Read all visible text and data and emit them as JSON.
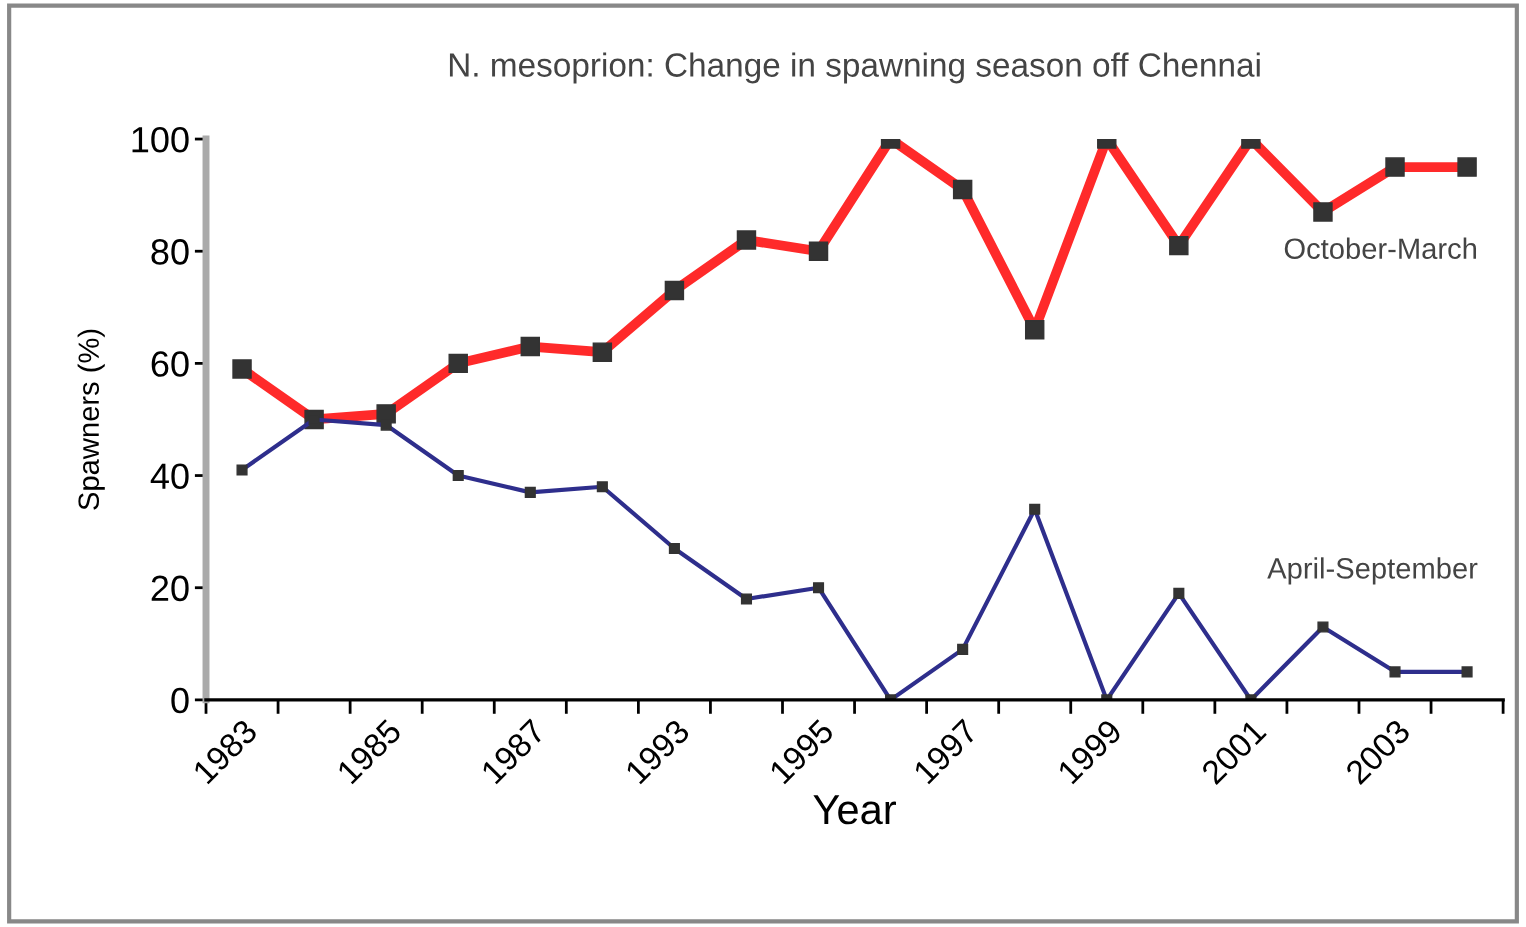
{
  "chart_data": {
    "type": "line",
    "title": "N. mesoprion: Change in spawning season off Chennai",
    "xlabel": "Year",
    "ylabel": "Spawners (%)",
    "categories": [
      "1983",
      null,
      "1985",
      null,
      "1987",
      null,
      "1993",
      null,
      "1995",
      null,
      "1997",
      null,
      "1999",
      null,
      "2001",
      null,
      "2003",
      null
    ],
    "series": [
      {
        "name": "October-March",
        "color": "#ff2a2a",
        "values": [
          59,
          50,
          51,
          60,
          63,
          62,
          73,
          82,
          80,
          100,
          91,
          66,
          100,
          81,
          100,
          87,
          95,
          95
        ]
      },
      {
        "name": "April-September",
        "color": "#2e2e8c",
        "values": [
          41,
          50,
          49,
          40,
          37,
          38,
          27,
          18,
          20,
          0,
          9,
          34,
          0,
          19,
          0,
          13,
          5,
          5
        ]
      }
    ],
    "ylim": [
      0,
      100
    ],
    "yticks": [
      0,
      20,
      40,
      60,
      80,
      100
    ],
    "grid": false,
    "legend": false,
    "marker": "square",
    "line_style": "solid"
  }
}
